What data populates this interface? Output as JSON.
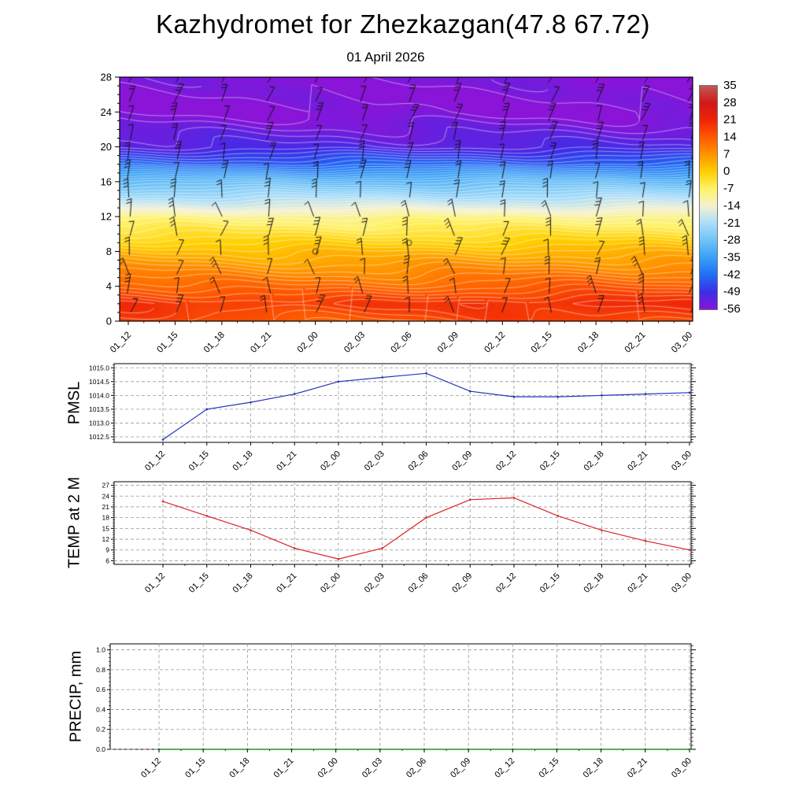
{
  "header": {
    "title": "Kazhydromet for Zhezkazgan(47.8 67.72)",
    "subtitle": "01 April 2026"
  },
  "grid_color": "#999999",
  "chart_data": [
    {
      "type": "heatmap",
      "name": "temperature-wind-cross-section",
      "description": "Time-height cross-section: shaded temperature (deg C) with wind barbs and white contour lines",
      "categories": [
        "01_12",
        "01_15",
        "01_18",
        "01_21",
        "02_00",
        "02_03",
        "02_06",
        "02_09",
        "02_12",
        "02_15",
        "02_18",
        "02_21",
        "03_00"
      ],
      "y_ticks": [
        0,
        4,
        8,
        12,
        16,
        20,
        24,
        28
      ],
      "ylim": [
        0,
        28
      ],
      "temperature_profile_level_degC": [
        [
          0,
          16
        ],
        [
          2,
          19
        ],
        [
          4,
          13
        ],
        [
          6,
          8
        ],
        [
          8,
          3
        ],
        [
          10,
          -3
        ],
        [
          11,
          -6
        ],
        [
          12,
          -9
        ],
        [
          13,
          -15
        ],
        [
          14,
          -20
        ],
        [
          16,
          -30
        ],
        [
          18,
          -43
        ],
        [
          20,
          -51
        ],
        [
          24,
          -56
        ],
        [
          28,
          -55
        ]
      ],
      "contour_color": "#ffffff",
      "wind_barb_color": "#111111",
      "calm_markers": [
        {
          "category": "02_00",
          "level": 8
        },
        {
          "category": "02_06",
          "level": 9
        }
      ],
      "colorbar": {
        "ticks_top_to_bottom": [
          35,
          28,
          21,
          14,
          7,
          0,
          -7,
          -14,
          -21,
          -28,
          -35,
          -42,
          -49,
          -56
        ],
        "colors_top_to_bottom": [
          "#bf5a52",
          "#d01818",
          "#ef2408",
          "#ff5a00",
          "#ff9500",
          "#ffd000",
          "#fff26a",
          "#f4f1cf",
          "#a9ddf9",
          "#6fc3f7",
          "#38a0f6",
          "#1f6ef5",
          "#3c2ee8",
          "#8a14d8"
        ]
      }
    },
    {
      "type": "line",
      "name": "pmsl",
      "ylabel": "PMSL",
      "line_color": "#2233bb",
      "categories": [
        "01_12",
        "01_15",
        "01_18",
        "01_21",
        "02_00",
        "02_03",
        "02_06",
        "02_09",
        "02_12",
        "02_15",
        "02_18",
        "02_21",
        "03_00"
      ],
      "values": [
        1012.4,
        1013.5,
        1013.75,
        1014.05,
        1014.5,
        1014.65,
        1014.8,
        1014.15,
        1013.95,
        1013.95,
        1014.0,
        1014.05,
        1014.1
      ],
      "y_ticks": [
        1012.5,
        1013.0,
        1013.5,
        1014.0,
        1014.5,
        1015.0
      ],
      "ylim": [
        1012.3,
        1015.15
      ],
      "tick_decimals": 1
    },
    {
      "type": "line",
      "name": "temp-2m",
      "ylabel": "TEMP at 2 M",
      "line_color": "#dd2222",
      "categories": [
        "01_12",
        "01_15",
        "01_18",
        "01_21",
        "02_00",
        "02_03",
        "02_06",
        "02_09",
        "02_12",
        "02_15",
        "02_18",
        "02_21",
        "03_00"
      ],
      "values": [
        22.5,
        18.5,
        14.5,
        9.5,
        6.5,
        9.5,
        18,
        23,
        23.5,
        18.5,
        14.5,
        11.5,
        9
      ],
      "y_ticks": [
        6,
        9,
        12,
        15,
        18,
        21,
        24,
        27
      ],
      "ylim": [
        5,
        28
      ],
      "tick_decimals": 0
    },
    {
      "type": "line",
      "name": "precip",
      "ylabel": "PRECIP, mm",
      "line_color": "#007700",
      "categories": [
        "01_12",
        "01_15",
        "01_18",
        "01_21",
        "02_00",
        "02_03",
        "02_06",
        "02_09",
        "02_12",
        "02_15",
        "02_18",
        "02_21",
        "03_00"
      ],
      "values": [
        0,
        0,
        0,
        0,
        0,
        0,
        0,
        0,
        0,
        0,
        0,
        0,
        0
      ],
      "y_ticks": [
        0.0,
        0.2,
        0.4,
        0.6,
        0.8,
        1.0
      ],
      "ylim": [
        0,
        1.06
      ],
      "tick_decimals": 1
    }
  ]
}
